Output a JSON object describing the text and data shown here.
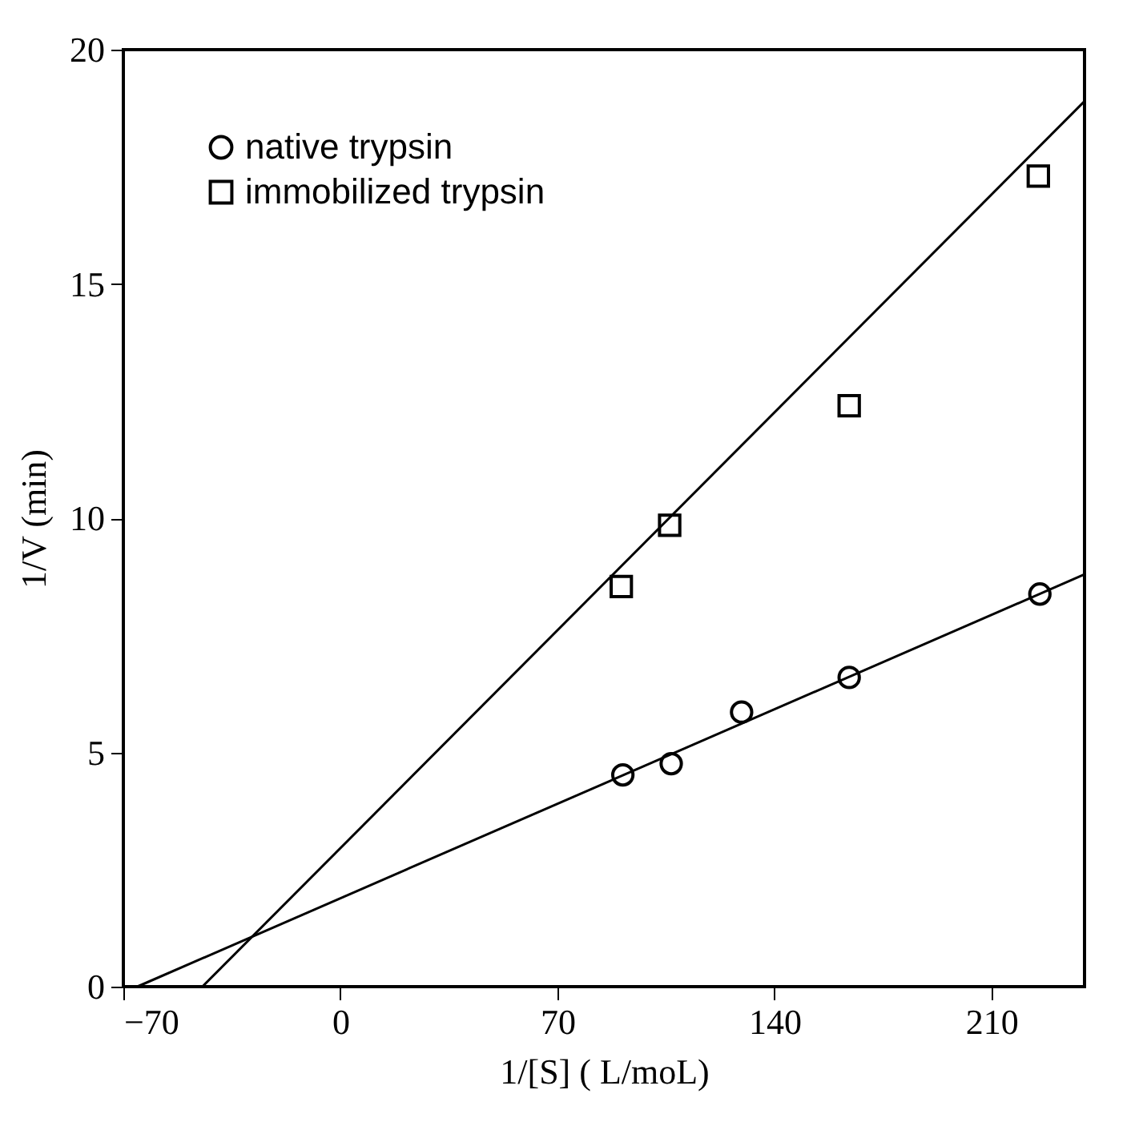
{
  "chart_data": {
    "type": "scatter",
    "xlabel": "1/[S] ( L/moL)",
    "ylabel": "1/V (min)",
    "xlim": [
      -70,
      240
    ],
    "ylim": [
      0,
      20
    ],
    "xticks": [
      -70,
      0,
      70,
      140,
      210
    ],
    "yticks": [
      0,
      5,
      10,
      15,
      20
    ],
    "grid": false,
    "legend": "top left",
    "series": [
      {
        "name": "native trypsin",
        "marker": "circle",
        "color": "#000000",
        "x": [
          91.1,
          106.7,
          129.4,
          164.1,
          225.6
        ],
        "values": [
          4.52,
          4.76,
          5.86,
          6.6,
          8.38
        ]
      },
      {
        "name": "immobilized trypsin",
        "marker": "square",
        "color": "#000000",
        "x": [
          90.6,
          106.2,
          164.1,
          225.1
        ],
        "values": [
          8.54,
          9.85,
          12.4,
          17.3
        ]
      },
      {
        "type": "line",
        "color": "#000000",
        "x": [
          -65.5,
          240
        ],
        "values": [
          0,
          8.8
        ]
      },
      {
        "type": "line",
        "color": "#000000",
        "x": [
          -44.5,
          240
        ],
        "values": [
          0,
          18.9
        ]
      }
    ]
  }
}
